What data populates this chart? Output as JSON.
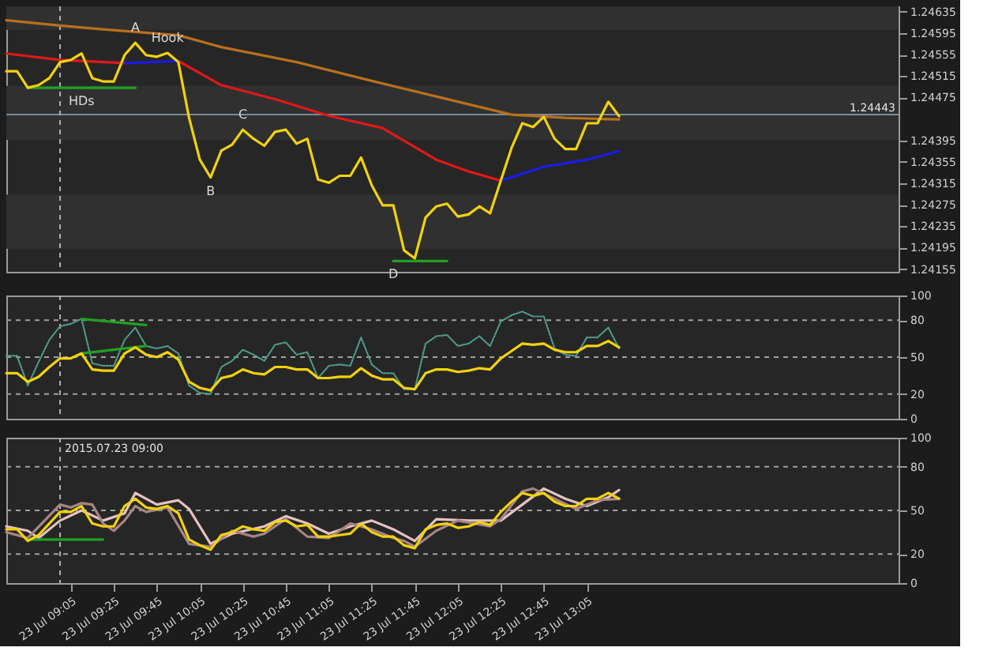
{
  "chart_data": [
    {
      "type": "line",
      "xlim": [
        "2015-07-23T08:35",
        "2015-07-23T15:30"
      ],
      "ylim": [
        1.2415,
        1.24645
      ],
      "tick_labels": "y",
      "yticks": [
        1.24155,
        1.24195,
        1.24235,
        1.24275,
        1.24315,
        1.24355,
        1.24395,
        1.24475,
        1.24515,
        1.24555,
        1.24595,
        1.24635
      ],
      "x": [
        "2015-07-23T08:35",
        "2015-07-23T08:40",
        "2015-07-23T08:45",
        "2015-07-23T08:50",
        "2015-07-23T08:55",
        "2015-07-23T09:00",
        "2015-07-23T09:05",
        "2015-07-23T09:10",
        "2015-07-23T09:15",
        "2015-07-23T09:20",
        "2015-07-23T09:25",
        "2015-07-23T09:30",
        "2015-07-23T09:35",
        "2015-07-23T09:40",
        "2015-07-23T09:45",
        "2015-07-23T09:50",
        "2015-07-23T09:55",
        "2015-07-23T10:00",
        "2015-07-23T10:05",
        "2015-07-23T10:10",
        "2015-07-23T10:15",
        "2015-07-23T10:20",
        "2015-07-23T10:25",
        "2015-07-23T10:30",
        "2015-07-23T10:35",
        "2015-07-23T10:40",
        "2015-07-23T10:45",
        "2015-07-23T10:50",
        "2015-07-23T10:55",
        "2015-07-23T11:00",
        "2015-07-23T11:05",
        "2015-07-23T11:10",
        "2015-07-23T11:15",
        "2015-07-23T11:20",
        "2015-07-23T11:25",
        "2015-07-23T11:30",
        "2015-07-23T11:35",
        "2015-07-23T11:40",
        "2015-07-23T11:45",
        "2015-07-23T11:50",
        "2015-07-23T11:55",
        "2015-07-23T12:00",
        "2015-07-23T12:05",
        "2015-07-23T12:10",
        "2015-07-23T12:15",
        "2015-07-23T12:20",
        "2015-07-23T12:25",
        "2015-07-23T12:30",
        "2015-07-23T12:35",
        "2015-07-23T12:40",
        "2015-07-23T12:45",
        "2015-07-23T12:50",
        "2015-07-23T12:55",
        "2015-07-23T13:00",
        "2015-07-23T13:05",
        "2015-07-23T13:10",
        "2015-07-23T13:15",
        "2015-07-23T13:20"
      ],
      "series": [
        {
          "color": "#b8701c",
          "x": [
            "2015-07-23T08:35",
            "2015-07-23T09:00",
            "2015-07-23T09:20",
            "2015-07-23T09:55",
            "2015-07-23T10:15",
            "2015-07-23T10:50",
            "2015-07-23T11:25",
            "2015-07-23T12:00",
            "2015-07-23T12:30",
            "2015-07-23T12:55",
            "2015-07-23T13:20"
          ],
          "values": [
            1.24619,
            1.24609,
            1.24602,
            1.24591,
            1.24569,
            1.24541,
            1.24506,
            1.24472,
            1.24443,
            1.24437,
            1.24434
          ]
        },
        {
          "color": "#e01818",
          "x": [
            "2015-07-23T08:35",
            "2015-07-23T09:00",
            "2015-07-23T09:30"
          ],
          "values": [
            1.24557,
            1.24545,
            1.24539
          ]
        },
        {
          "color": "#e01818",
          "x": [
            "2015-07-23T09:55",
            "2015-07-23T10:15",
            "2015-07-23T10:40",
            "2015-07-23T11:05",
            "2015-07-23T11:30",
            "2015-07-23T11:55",
            "2015-07-23T12:10",
            "2015-07-23T12:25"
          ],
          "values": [
            1.24543,
            1.24498,
            1.24472,
            1.24441,
            1.24418,
            1.24359,
            1.24337,
            1.2432
          ]
        },
        {
          "color": "#1a1ae8",
          "x": [
            "2015-07-23T09:30",
            "2015-07-23T09:55"
          ],
          "values": [
            1.24539,
            1.24543
          ]
        },
        {
          "color": "#1a1ae8",
          "x": [
            "2015-07-23T12:25",
            "2015-07-23T12:45",
            "2015-07-23T13:05",
            "2015-07-23T13:20"
          ],
          "values": [
            1.2432,
            1.24346,
            1.24359,
            1.24375
          ]
        },
        {
          "color": "#22a022",
          "x": [
            "2015-07-23T08:45",
            "2015-07-23T09:35"
          ],
          "values": [
            1.24493,
            1.24493
          ]
        },
        {
          "color": "#22a022",
          "x": [
            "2015-07-23T11:35",
            "2015-07-23T12:00"
          ],
          "values": [
            1.2417,
            1.2417
          ]
        },
        {
          "color": "#f2d20c",
          "values": [
            1.24524,
            1.24524,
            1.24493,
            1.24498,
            1.24511,
            1.24541,
            1.24545,
            1.24557,
            1.24511,
            1.24505,
            1.24505,
            1.24554,
            1.24577,
            1.24554,
            1.24551,
            1.24558,
            1.24541,
            1.24437,
            1.24359,
            1.24326,
            1.24376,
            1.24387,
            1.24415,
            1.24398,
            1.24385,
            1.24411,
            1.24415,
            1.24389,
            1.24398,
            1.24322,
            1.24316,
            1.24329,
            1.24329,
            1.24363,
            1.24311,
            1.24274,
            1.24274,
            1.2419,
            1.24175,
            1.24251,
            1.24272,
            1.24277,
            1.24253,
            1.24257,
            1.24272,
            1.24259,
            1.2432,
            1.24381,
            1.24427,
            1.2442,
            1.24439,
            1.24398,
            1.24379,
            1.24379,
            1.24427,
            1.24427,
            1.24467,
            1.2444
          ]
        }
      ],
      "bands": [
        {
          "axis": "y",
          "from": 1.24601,
          "to": 1.24645,
          "color": "#303030"
        },
        {
          "axis": "y",
          "from": 1.24396,
          "to": 1.24497,
          "color": "#303030"
        },
        {
          "axis": "y",
          "from": 1.24193,
          "to": 1.24294,
          "color": "#303030"
        }
      ],
      "ref_lines": [
        {
          "axis": "y",
          "value": 1.24443,
          "label": "1.24443",
          "color": "#7d8b99"
        },
        {
          "axis": "x",
          "value": "2015-07-23T09:00",
          "color": "#b0b0b0",
          "line_style": "dashed"
        }
      ],
      "annotations": [
        {
          "text": "A",
          "x": "2015-07-23T09:35",
          "y": 1.24577
        },
        {
          "text": "Hook",
          "x": "2015-07-23T09:50",
          "y": 1.24558
        },
        {
          "text": "HDs",
          "x": "2015-07-23T09:10",
          "y": 1.24493
        },
        {
          "text": "B",
          "x": "2015-07-23T10:10",
          "y": 1.24326
        },
        {
          "text": "C",
          "x": "2015-07-23T10:25",
          "y": 1.24415
        },
        {
          "text": "D",
          "x": "2015-07-23T11:35",
          "y": 1.2417
        }
      ]
    },
    {
      "type": "line",
      "xlim": [
        "2015-07-23T08:35",
        "2015-07-23T15:30"
      ],
      "ylim": [
        0,
        100
      ],
      "yticks": [
        0,
        20,
        50,
        80,
        100
      ],
      "tick_labels": "y",
      "x": [
        "2015-07-23T08:35",
        "2015-07-23T08:40",
        "2015-07-23T08:45",
        "2015-07-23T08:50",
        "2015-07-23T08:55",
        "2015-07-23T09:00",
        "2015-07-23T09:05",
        "2015-07-23T09:10",
        "2015-07-23T09:15",
        "2015-07-23T09:20",
        "2015-07-23T09:25",
        "2015-07-23T09:30",
        "2015-07-23T09:35",
        "2015-07-23T09:40",
        "2015-07-23T09:45",
        "2015-07-23T09:50",
        "2015-07-23T09:55",
        "2015-07-23T10:00",
        "2015-07-23T10:05",
        "2015-07-23T10:10",
        "2015-07-23T10:15",
        "2015-07-23T10:20",
        "2015-07-23T10:25",
        "2015-07-23T10:30",
        "2015-07-23T10:35",
        "2015-07-23T10:40",
        "2015-07-23T10:45",
        "2015-07-23T10:50",
        "2015-07-23T10:55",
        "2015-07-23T11:00",
        "2015-07-23T11:05",
        "2015-07-23T11:10",
        "2015-07-23T11:15",
        "2015-07-23T11:20",
        "2015-07-23T11:25",
        "2015-07-23T11:30",
        "2015-07-23T11:35",
        "2015-07-23T11:40",
        "2015-07-23T11:45",
        "2015-07-23T11:50",
        "2015-07-23T11:55",
        "2015-07-23T12:00",
        "2015-07-23T12:05",
        "2015-07-23T12:10",
        "2015-07-23T12:15",
        "2015-07-23T12:20",
        "2015-07-23T12:25",
        "2015-07-23T12:30",
        "2015-07-23T12:35",
        "2015-07-23T12:40",
        "2015-07-23T12:45",
        "2015-07-23T12:50",
        "2015-07-23T12:55",
        "2015-07-23T13:00",
        "2015-07-23T13:05",
        "2015-07-23T13:10",
        "2015-07-23T13:15",
        "2015-07-23T13:20"
      ],
      "series": [
        {
          "color": "#4f9a8c",
          "line_style": "dotted",
          "values": [
            51,
            51,
            27,
            46,
            64,
            75,
            77,
            81,
            45,
            43,
            43,
            64,
            74,
            59,
            57,
            59,
            53,
            27,
            21,
            20,
            42,
            47,
            56,
            52,
            47,
            60,
            62,
            52,
            54,
            33,
            43,
            44,
            43,
            66,
            44,
            37,
            37,
            24,
            24,
            61,
            67,
            68,
            59,
            61,
            67,
            59,
            79,
            84,
            87,
            83,
            83,
            57,
            52,
            51,
            66,
            66,
            74,
            57
          ]
        },
        {
          "color": "#22a022",
          "x": [
            "2015-07-23T09:10",
            "2015-07-23T09:40"
          ],
          "values": [
            81,
            76
          ]
        },
        {
          "color": "#22a022",
          "x": [
            "2015-07-23T09:10",
            "2015-07-23T09:40"
          ],
          "values": [
            53,
            59
          ]
        },
        {
          "color": "#f2d20c",
          "values": [
            37,
            37,
            30,
            34,
            42,
            49,
            49,
            53,
            40,
            39,
            39,
            53,
            58,
            52,
            50,
            54,
            48,
            30,
            25,
            23,
            33,
            35,
            40,
            37,
            36,
            42,
            42,
            40,
            40,
            33,
            33,
            34,
            34,
            41,
            35,
            32,
            32,
            25,
            24,
            37,
            40,
            40,
            38,
            39,
            41,
            40,
            49,
            55,
            61,
            60,
            61,
            56,
            54,
            54,
            59,
            59,
            63,
            58
          ]
        }
      ],
      "ref_lines": [
        {
          "axis": "y",
          "value": 20,
          "color": "#a0a0a0",
          "line_style": "dashed"
        },
        {
          "axis": "y",
          "value": 50,
          "color": "#a0a0a0",
          "line_style": "dashed"
        },
        {
          "axis": "y",
          "value": 80,
          "color": "#a0a0a0",
          "line_style": "dashed"
        },
        {
          "axis": "x",
          "value": "2015-07-23T09:00",
          "color": "#b0b0b0",
          "line_style": "dashed"
        }
      ]
    },
    {
      "type": "line",
      "xlim": [
        "2015-07-23T08:35",
        "2015-07-23T15:30"
      ],
      "ylim": [
        0,
        100
      ],
      "yticks": [
        0,
        20,
        50,
        80,
        100
      ],
      "xticks": [
        {
          "value": "2015-07-23T09:05",
          "label": "23 Jul 09:05"
        },
        {
          "value": "2015-07-23T09:25",
          "label": "23 Jul 09:25"
        },
        {
          "value": "2015-07-23T09:45",
          "label": "23 Jul 09:45"
        },
        {
          "value": "2015-07-23T10:05",
          "label": "23 Jul 10:05"
        },
        {
          "value": "2015-07-23T10:25",
          "label": "23 Jul 10:25"
        },
        {
          "value": "2015-07-23T10:45",
          "label": "23 Jul 10:45"
        },
        {
          "value": "2015-07-23T11:05",
          "label": "23 Jul 11:05"
        },
        {
          "value": "2015-07-23T11:25",
          "label": "23 Jul 11:25"
        },
        {
          "value": "2015-07-23T11:45",
          "label": "23 Jul 11:45"
        },
        {
          "value": "2015-07-23T12:05",
          "label": "23 Jul 12:05"
        },
        {
          "value": "2015-07-23T12:25",
          "label": "23 Jul 12:25"
        },
        {
          "value": "2015-07-23T12:45",
          "label": "23 Jul 12:45"
        },
        {
          "value": "2015-07-23T13:05",
          "label": "23 Jul 13:05"
        }
      ],
      "x": [
        "2015-07-23T08:35",
        "2015-07-23T08:40",
        "2015-07-23T08:45",
        "2015-07-23T08:50",
        "2015-07-23T08:55",
        "2015-07-23T09:00",
        "2015-07-23T09:05",
        "2015-07-23T09:10",
        "2015-07-23T09:15",
        "2015-07-23T09:20",
        "2015-07-23T09:25",
        "2015-07-23T09:30",
        "2015-07-23T09:35",
        "2015-07-23T09:40",
        "2015-07-23T09:45",
        "2015-07-23T09:50",
        "2015-07-23T09:55",
        "2015-07-23T10:00",
        "2015-07-23T10:05",
        "2015-07-23T10:10",
        "2015-07-23T10:15",
        "2015-07-23T10:20",
        "2015-07-23T10:25",
        "2015-07-23T10:30",
        "2015-07-23T10:35",
        "2015-07-23T10:40",
        "2015-07-23T10:45",
        "2015-07-23T10:50",
        "2015-07-23T10:55",
        "2015-07-23T11:00",
        "2015-07-23T11:05",
        "2015-07-23T11:10",
        "2015-07-23T11:15",
        "2015-07-23T11:20",
        "2015-07-23T11:25",
        "2015-07-23T11:30",
        "2015-07-23T11:35",
        "2015-07-23T11:40",
        "2015-07-23T11:45",
        "2015-07-23T11:50",
        "2015-07-23T11:55",
        "2015-07-23T12:00",
        "2015-07-23T12:05",
        "2015-07-23T12:10",
        "2015-07-23T12:15",
        "2015-07-23T12:20",
        "2015-07-23T12:25",
        "2015-07-23T12:30",
        "2015-07-23T12:35",
        "2015-07-23T12:40",
        "2015-07-23T12:45",
        "2015-07-23T12:50",
        "2015-07-23T12:55",
        "2015-07-23T13:00",
        "2015-07-23T13:05",
        "2015-07-23T13:10",
        "2015-07-23T13:15",
        "2015-07-23T13:20"
      ],
      "series": [
        {
          "color": "#e6c2c2",
          "x": [
            "2015-07-23T08:35",
            "2015-07-23T08:45",
            "2015-07-23T08:50",
            "2015-07-23T09:00",
            "2015-07-23T09:10",
            "2015-07-23T09:20",
            "2015-07-23T09:30",
            "2015-07-23T09:35",
            "2015-07-23T09:45",
            "2015-07-23T09:55",
            "2015-07-23T10:00",
            "2015-07-23T10:10",
            "2015-07-23T10:20",
            "2015-07-23T10:35",
            "2015-07-23T10:45",
            "2015-07-23T10:55",
            "2015-07-23T11:05",
            "2015-07-23T11:15",
            "2015-07-23T11:25",
            "2015-07-23T11:35",
            "2015-07-23T11:45",
            "2015-07-23T11:55",
            "2015-07-23T12:10",
            "2015-07-23T12:25",
            "2015-07-23T12:35",
            "2015-07-23T12:45",
            "2015-07-23T12:55",
            "2015-07-23T13:05",
            "2015-07-23T13:15",
            "2015-07-23T13:20"
          ],
          "values": [
            39,
            36,
            31,
            43,
            50,
            43,
            48,
            62,
            54,
            57,
            51,
            27,
            34,
            39,
            46,
            41,
            34,
            39,
            43,
            37,
            29,
            44,
            43,
            43,
            54,
            65,
            58,
            53,
            59,
            64
          ]
        },
        {
          "color": "#a88484",
          "x": [
            "2015-07-23T08:35",
            "2015-07-23T08:45",
            "2015-07-23T09:00",
            "2015-07-23T09:05",
            "2015-07-23T09:10",
            "2015-07-23T09:15",
            "2015-07-23T09:20",
            "2015-07-23T09:25",
            "2015-07-23T09:30",
            "2015-07-23T09:35",
            "2015-07-23T09:40",
            "2015-07-23T09:50",
            "2015-07-23T10:00",
            "2015-07-23T10:10",
            "2015-07-23T10:20",
            "2015-07-23T10:30",
            "2015-07-23T10:35",
            "2015-07-23T10:45",
            "2015-07-23T10:55",
            "2015-07-23T11:05",
            "2015-07-23T11:15",
            "2015-07-23T11:25",
            "2015-07-23T11:35",
            "2015-07-23T11:40",
            "2015-07-23T11:45",
            "2015-07-23T11:55",
            "2015-07-23T12:05",
            "2015-07-23T12:20",
            "2015-07-23T12:25",
            "2015-07-23T12:35",
            "2015-07-23T12:40",
            "2015-07-23T12:50",
            "2015-07-23T13:00",
            "2015-07-23T13:10",
            "2015-07-23T13:20"
          ],
          "values": [
            35,
            31,
            54,
            52,
            55,
            54,
            41,
            36,
            43,
            53,
            49,
            52,
            27,
            25,
            36,
            32,
            34,
            44,
            32,
            31,
            41,
            37,
            31,
            29,
            25,
            36,
            43,
            39,
            44,
            63,
            65,
            58,
            51,
            57,
            58
          ]
        },
        {
          "color": "#22a022",
          "x": [
            "2015-07-23T08:45",
            "2015-07-23T09:20"
          ],
          "values": [
            30,
            30
          ]
        },
        {
          "color": "#f2d20c",
          "values": [
            37,
            37,
            29,
            33,
            41,
            49,
            49,
            53,
            41,
            39,
            39,
            53,
            58,
            52,
            51,
            53,
            48,
            30,
            26,
            23,
            33,
            35,
            39,
            37,
            36,
            42,
            43,
            39,
            40,
            32,
            32,
            33,
            34,
            41,
            35,
            32,
            32,
            26,
            24,
            37,
            40,
            41,
            38,
            39,
            42,
            40,
            49,
            56,
            62,
            60,
            62,
            56,
            53,
            53,
            58,
            58,
            62,
            58
          ]
        }
      ],
      "ref_lines": [
        {
          "axis": "y",
          "value": 20,
          "color": "#a0a0a0",
          "line_style": "dashed"
        },
        {
          "axis": "y",
          "value": 50,
          "color": "#a0a0a0",
          "line_style": "dashed"
        },
        {
          "axis": "y",
          "value": 80,
          "color": "#a0a0a0",
          "line_style": "dashed"
        },
        {
          "axis": "x",
          "value": "2015-07-23T09:00",
          "label": "2015.07.23 09:00",
          "color": "#b0b0b0",
          "line_style": "dashed"
        }
      ]
    }
  ]
}
